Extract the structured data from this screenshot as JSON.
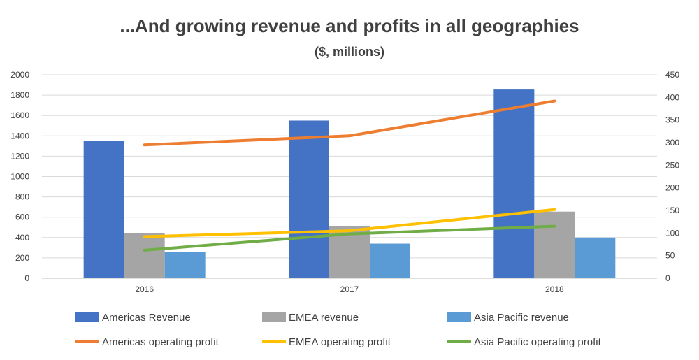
{
  "chart_data": {
    "type": "bar",
    "title": "...And growing revenue and profits in all geographies",
    "subtitle": "($, millions)",
    "categories": [
      "2016",
      "2017",
      "2018"
    ],
    "ylim_left": [
      0,
      2000
    ],
    "yticks_left": [
      0,
      200,
      400,
      600,
      800,
      1000,
      1200,
      1400,
      1600,
      1800,
      2000
    ],
    "ylim_right": [
      0,
      450
    ],
    "yticks_right": [
      0,
      50,
      100,
      150,
      200,
      250,
      300,
      350,
      400,
      450
    ],
    "grid": true,
    "legend_position": "bottom",
    "bar_series": [
      {
        "name": "Americas Revenue",
        "values": [
          1350,
          1550,
          1855
        ],
        "color": "#4472c4"
      },
      {
        "name": "EMEA revenue",
        "values": [
          440,
          510,
          655
        ],
        "color": "#a5a5a5"
      },
      {
        "name": "Asia Pacific revenue",
        "values": [
          255,
          340,
          400
        ],
        "color": "#5b9bd5"
      }
    ],
    "line_series": [
      {
        "name": "Americas operating profit",
        "values": [
          295,
          315,
          392
        ],
        "color": "#ed7d31",
        "axis": "right"
      },
      {
        "name": "EMEA operating profit",
        "values": [
          92,
          105,
          152
        ],
        "color": "#ffc000",
        "axis": "right"
      },
      {
        "name": "Asia Pacific operating profit",
        "values": [
          62,
          98,
          115
        ],
        "color": "#70ad47",
        "axis": "right"
      }
    ]
  }
}
